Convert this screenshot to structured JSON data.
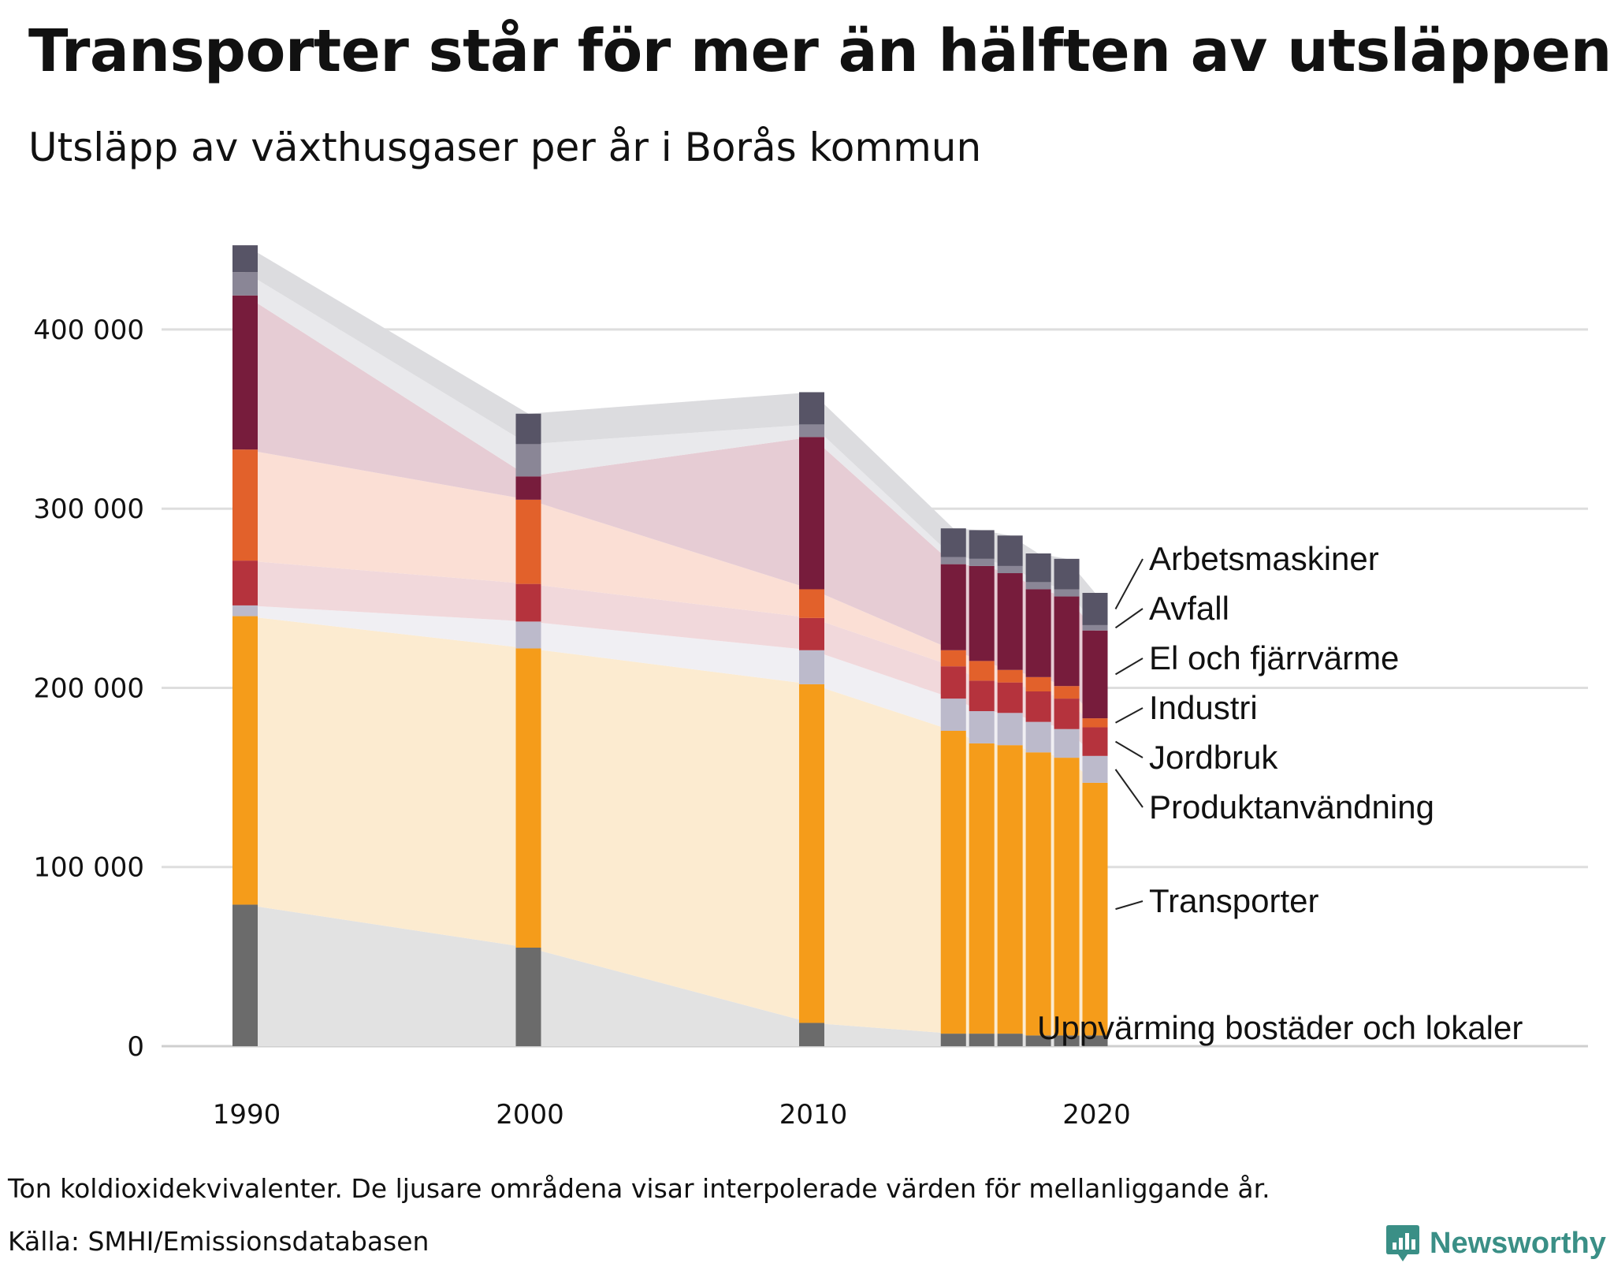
{
  "title": "Transporter står för mer än hälften av utsläppen",
  "subtitle": "Utsläpp av växthusgaser per år i Borås kommun",
  "note": "Ton koldioxidekvivalenter. De ljusare områdena visar interpolerade värden för mellanliggande år.",
  "source": "Källa: SMHI/Emissionsdatabasen",
  "brand": "Newsworthy",
  "brand_color": "#3a8f86",
  "chart_data": {
    "type": "bar",
    "stacked": true,
    "x": [
      1990,
      2000,
      2010,
      2015,
      2016,
      2017,
      2018,
      2019,
      2020
    ],
    "x_ticks": [
      "1990",
      "2000",
      "2010",
      "2020"
    ],
    "ylim": [
      0,
      460000
    ],
    "y_ticks": [
      0,
      100000,
      200000,
      300000,
      400000
    ],
    "y_tick_labels": [
      "0",
      "100 000",
      "200 000",
      "300 000",
      "400 000"
    ],
    "grid": true,
    "interpolated_areas": true,
    "series": [
      {
        "name": "Uppvärming bostäder och lokaler",
        "color": "#6b6b6b",
        "area_color": "#e2e2e2",
        "values": [
          79000,
          55000,
          13000,
          7000,
          7000,
          7000,
          6000,
          6000,
          6000
        ]
      },
      {
        "name": "Transporter",
        "color": "#f59c1a",
        "area_color": "#fcebd0",
        "values": [
          161000,
          167000,
          189000,
          169000,
          162000,
          161000,
          158000,
          155000,
          141000
        ]
      },
      {
        "name": "Produktanvändning",
        "color": "#bcbacb",
        "area_color": "#f0eff3",
        "values": [
          6000,
          15000,
          19000,
          18000,
          18000,
          18000,
          17000,
          16000,
          15000
        ]
      },
      {
        "name": "Jordbruk",
        "color": "#b5333d",
        "area_color": "#f1d8db",
        "values": [
          25000,
          21000,
          18000,
          18000,
          17000,
          17000,
          17000,
          17000,
          16000
        ]
      },
      {
        "name": "Industri",
        "color": "#e2612b",
        "area_color": "#fbdfd5",
        "values": [
          62000,
          47000,
          16000,
          9000,
          11000,
          7000,
          8000,
          7000,
          5000
        ]
      },
      {
        "name": "El och fjärrvärme",
        "color": "#771c3c",
        "area_color": "#e6ccd4",
        "values": [
          86000,
          13000,
          85000,
          48000,
          53000,
          54000,
          49000,
          50000,
          49000
        ]
      },
      {
        "name": "Avfall",
        "color": "#8a8696",
        "area_color": "#e9e9ec",
        "values": [
          13000,
          18000,
          7000,
          4000,
          4000,
          4000,
          4000,
          4000,
          3000
        ]
      },
      {
        "name": "Arbetsmaskiner",
        "color": "#575466",
        "area_color": "#dcdcdf",
        "values": [
          15000,
          17000,
          18000,
          16000,
          16000,
          17000,
          16000,
          17000,
          18000
        ]
      }
    ]
  }
}
